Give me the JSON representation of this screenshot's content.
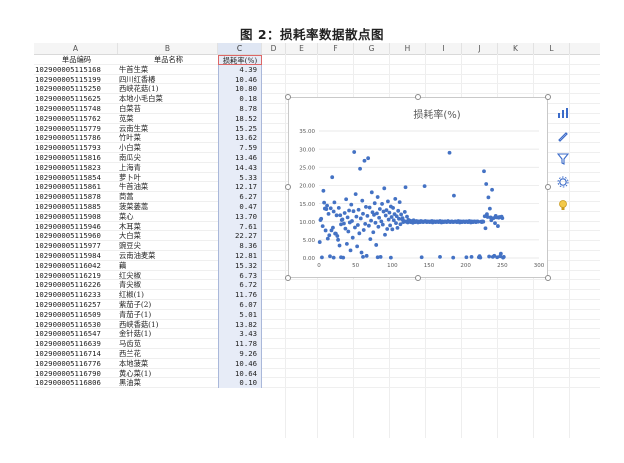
{
  "caption": "图 2：损耗率数据散点图",
  "columns": [
    "A",
    "B",
    "C",
    "D",
    "E",
    "F",
    "G",
    "H",
    "I",
    "J",
    "K",
    "L"
  ],
  "table": {
    "headers": [
      "单品编码",
      "单品名称",
      "损耗率(%)"
    ],
    "rows": [
      [
        "102900005115168",
        "牛首生菜",
        "4.39"
      ],
      [
        "102900005115199",
        "四川红香椿",
        "10.46"
      ],
      [
        "102900005115250",
        "西峡花菇(1)",
        "10.80"
      ],
      [
        "102900005115625",
        "本地小毛白菜",
        "0.18"
      ],
      [
        "102900005115748",
        "白菜苔",
        "8.78"
      ],
      [
        "102900005115762",
        "苋菜",
        "18.52"
      ],
      [
        "102900005115779",
        "云南生菜",
        "15.25"
      ],
      [
        "102900005115786",
        "竹叶菜",
        "13.62"
      ],
      [
        "102900005115793",
        "小白菜",
        "7.59"
      ],
      [
        "102900005115816",
        "南瓜尖",
        "13.46"
      ],
      [
        "102900005115823",
        "上海青",
        "14.43"
      ],
      [
        "102900005115854",
        "萝卜叶",
        "5.33"
      ],
      [
        "102900005115861",
        "牛首油菜",
        "12.17"
      ],
      [
        "102900005115878",
        "茼蒿",
        "6.27"
      ],
      [
        "102900005115885",
        "菠菜蒌蒿",
        "0.47"
      ],
      [
        "102900005115908",
        "菜心",
        "13.70"
      ],
      [
        "102900005115946",
        "木耳菜",
        "7.61"
      ],
      [
        "102900005115960",
        "大白菜",
        "22.27"
      ],
      [
        "102900005115977",
        "豌豆尖",
        "8.36"
      ],
      [
        "102900005115984",
        "云南油麦菜",
        "12.81"
      ],
      [
        "102900005116042",
        "藕",
        "15.32"
      ],
      [
        "102900005116219",
        "红尖椒",
        "6.73"
      ],
      [
        "102900005116226",
        "青尖椒",
        "6.72"
      ],
      [
        "102900005116233",
        "红椒(1)",
        "11.76"
      ],
      [
        "102900005116257",
        "紫茄子(2)",
        "6.07"
      ],
      [
        "102900005116509",
        "青茄子(1)",
        "5.01"
      ],
      [
        "102900005116530",
        "西峡香菇(1)",
        "13.82"
      ],
      [
        "102900005116547",
        "金针菇(1)",
        "3.43"
      ],
      [
        "102900005116639",
        "马齿苋",
        "11.78"
      ],
      [
        "102900005116714",
        "西兰花",
        "9.26"
      ],
      [
        "102900005116776",
        "本地菠菜",
        "10.46"
      ],
      [
        "102900005116790",
        "黄心菜(1)",
        "10.64"
      ],
      [
        "102900005116806",
        "黑油菜",
        "0.10"
      ]
    ]
  },
  "chart_data": {
    "type": "scatter",
    "title": "损耗率(%)",
    "xlim": [
      0,
      300
    ],
    "ylim": [
      0,
      35
    ],
    "xticks": [
      "0",
      "50",
      "100",
      "150",
      "200",
      "250",
      "300"
    ],
    "yticks": [
      "0.00",
      "5.00",
      "10.00",
      "15.00",
      "20.00",
      "25.00",
      "30.00",
      "35.00"
    ],
    "color": "#4472c4",
    "grid": true,
    "points": [
      [
        1,
        4.39
      ],
      [
        2,
        10.46
      ],
      [
        3,
        10.8
      ],
      [
        4,
        0.18
      ],
      [
        5,
        8.78
      ],
      [
        6,
        18.52
      ],
      [
        7,
        15.25
      ],
      [
        8,
        13.62
      ],
      [
        9,
        7.59
      ],
      [
        10,
        13.46
      ],
      [
        11,
        14.43
      ],
      [
        12,
        5.33
      ],
      [
        13,
        12.17
      ],
      [
        14,
        6.27
      ],
      [
        15,
        0.47
      ],
      [
        16,
        13.7
      ],
      [
        17,
        7.61
      ],
      [
        18,
        22.27
      ],
      [
        19,
        8.36
      ],
      [
        20,
        12.81
      ],
      [
        21,
        15.32
      ],
      [
        22,
        6.73
      ],
      [
        23,
        6.72
      ],
      [
        24,
        11.76
      ],
      [
        25,
        6.07
      ],
      [
        26,
        5.01
      ],
      [
        27,
        13.82
      ],
      [
        28,
        3.43
      ],
      [
        29,
        11.78
      ],
      [
        30,
        9.26
      ],
      [
        31,
        10.46
      ],
      [
        32,
        10.64
      ],
      [
        33,
        0.1
      ],
      [
        34,
        9.5
      ],
      [
        35,
        12.4
      ],
      [
        36,
        8.1
      ],
      [
        37,
        16.2
      ],
      [
        38,
        3.9
      ],
      [
        39,
        11.2
      ],
      [
        40,
        7.3
      ],
      [
        41,
        13.1
      ],
      [
        42,
        9.8
      ],
      [
        43,
        2.1
      ],
      [
        44,
        14.7
      ],
      [
        45,
        10.2
      ],
      [
        46,
        5.6
      ],
      [
        47,
        12.9
      ],
      [
        48,
        29.2
      ],
      [
        49,
        8.4
      ],
      [
        50,
        17.6
      ],
      [
        51,
        11.4
      ],
      [
        52,
        3.2
      ],
      [
        53,
        9.1
      ],
      [
        54,
        13.3
      ],
      [
        55,
        6.8
      ],
      [
        56,
        24.6
      ],
      [
        57,
        10.9
      ],
      [
        58,
        1.5
      ],
      [
        59,
        15.8
      ],
      [
        60,
        12.2
      ],
      [
        61,
        7.7
      ],
      [
        62,
        26.8
      ],
      [
        63,
        9.4
      ],
      [
        64,
        14.1
      ],
      [
        65,
        0.6
      ],
      [
        66,
        11.6
      ],
      [
        67,
        27.5
      ],
      [
        68,
        8.9
      ],
      [
        69,
        13.9
      ],
      [
        70,
        5.2
      ],
      [
        71,
        10.3
      ],
      [
        72,
        18.1
      ],
      [
        73,
        12.6
      ],
      [
        74,
        7.1
      ],
      [
        75,
        11.9
      ],
      [
        76,
        15.1
      ],
      [
        77,
        9.7
      ],
      [
        78,
        3.6
      ],
      [
        79,
        12.3
      ],
      [
        80,
        16.8
      ],
      [
        81,
        8.6
      ],
      [
        82,
        11.1
      ],
      [
        83,
        13.5
      ],
      [
        84,
        0.3
      ],
      [
        85,
        10.1
      ],
      [
        86,
        14.9
      ],
      [
        87,
        9.2
      ],
      [
        88,
        12.8
      ],
      [
        89,
        19.2
      ],
      [
        90,
        6.4
      ],
      [
        91,
        11.7
      ],
      [
        92,
        13.2
      ],
      [
        93,
        8.0
      ],
      [
        94,
        15.6
      ],
      [
        95,
        10.6
      ],
      [
        96,
        12.5
      ],
      [
        97,
        9.0
      ],
      [
        98,
        14.2
      ],
      [
        99,
        11.3
      ],
      [
        100,
        7.9
      ],
      [
        101,
        13.8
      ],
      [
        102,
        10.4
      ],
      [
        103,
        12.1
      ],
      [
        104,
        16.3
      ],
      [
        105,
        9.6
      ],
      [
        106,
        11.5
      ],
      [
        107,
        8.3
      ],
      [
        108,
        13.0
      ],
      [
        109,
        10.8
      ],
      [
        110,
        15.4
      ],
      [
        111,
        9.3
      ],
      [
        112,
        12.0
      ],
      [
        113,
        10.7
      ],
      [
        114,
        11.0
      ],
      [
        115,
        9.9
      ],
      [
        116,
        10.2
      ],
      [
        117,
        12.7
      ],
      [
        118,
        19.5
      ],
      [
        119,
        10.0
      ],
      [
        120,
        11.4
      ],
      [
        121,
        9.8
      ],
      [
        122,
        10.5
      ],
      [
        123,
        10.1
      ],
      [
        124,
        10.3
      ],
      [
        125,
        9.9
      ],
      [
        126,
        10.0
      ],
      [
        127,
        10.2
      ],
      [
        128,
        9.7
      ],
      [
        129,
        10.4
      ],
      [
        130,
        10.1
      ],
      [
        131,
        9.9
      ],
      [
        132,
        10.0
      ],
      [
        133,
        10.2
      ],
      [
        134,
        10.0
      ],
      [
        135,
        9.8
      ],
      [
        136,
        10.1
      ],
      [
        137,
        10.0
      ],
      [
        138,
        9.9
      ],
      [
        139,
        10.2
      ],
      [
        140,
        10.0
      ],
      [
        141,
        10.1
      ],
      [
        142,
        9.9
      ],
      [
        143,
        10.0
      ],
      [
        144,
        19.8
      ],
      [
        145,
        10.2
      ],
      [
        146,
        10.0
      ],
      [
        147,
        9.9
      ],
      [
        148,
        10.1
      ],
      [
        149,
        10.0
      ],
      [
        150,
        10.0
      ],
      [
        151,
        9.9
      ],
      [
        152,
        10.1
      ],
      [
        153,
        10.0
      ],
      [
        154,
        10.2
      ],
      [
        155,
        9.8
      ],
      [
        156,
        10.0
      ],
      [
        157,
        10.1
      ],
      [
        158,
        10.0
      ],
      [
        159,
        9.9
      ],
      [
        160,
        10.0
      ],
      [
        161,
        10.1
      ],
      [
        162,
        10.0
      ],
      [
        163,
        9.9
      ],
      [
        164,
        10.0
      ],
      [
        165,
        10.2
      ],
      [
        166,
        10.0
      ],
      [
        167,
        9.8
      ],
      [
        168,
        10.1
      ],
      [
        169,
        10.0
      ],
      [
        170,
        9.9
      ],
      [
        171,
        10.0
      ],
      [
        172,
        10.1
      ],
      [
        173,
        10.0
      ],
      [
        174,
        9.9
      ],
      [
        175,
        10.0
      ],
      [
        176,
        10.2
      ],
      [
        177,
        10.0
      ],
      [
        178,
        29.0
      ],
      [
        179,
        9.9
      ],
      [
        180,
        10.0
      ],
      [
        181,
        10.1
      ],
      [
        182,
        10.0
      ],
      [
        183,
        9.9
      ],
      [
        184,
        17.2
      ],
      [
        185,
        10.0
      ],
      [
        186,
        10.1
      ],
      [
        187,
        10.0
      ],
      [
        188,
        9.9
      ],
      [
        189,
        10.0
      ],
      [
        190,
        10.2
      ],
      [
        191,
        10.0
      ],
      [
        192,
        9.8
      ],
      [
        193,
        10.1
      ],
      [
        194,
        10.0
      ],
      [
        195,
        9.9
      ],
      [
        196,
        10.0
      ],
      [
        197,
        10.1
      ],
      [
        198,
        10.0
      ],
      [
        199,
        9.9
      ],
      [
        200,
        10.0
      ],
      [
        201,
        10.1
      ],
      [
        202,
        10.0
      ],
      [
        203,
        9.9
      ],
      [
        204,
        10.0
      ],
      [
        205,
        10.2
      ],
      [
        206,
        10.0
      ],
      [
        207,
        9.8
      ],
      [
        208,
        10.1
      ],
      [
        209,
        10.0
      ],
      [
        210,
        9.9
      ],
      [
        211,
        10.0
      ],
      [
        212,
        10.1
      ],
      [
        213,
        10.0
      ],
      [
        214,
        9.9
      ],
      [
        215,
        10.0
      ],
      [
        216,
        10.1
      ],
      [
        217,
        10.0
      ],
      [
        218,
        0.2
      ],
      [
        219,
        0.5
      ],
      [
        220,
        0.1
      ],
      [
        221,
        10.0
      ],
      [
        222,
        9.9
      ],
      [
        223,
        10.1
      ],
      [
        224,
        10.0
      ],
      [
        225,
        23.9
      ],
      [
        226,
        11.5
      ],
      [
        227,
        8.2
      ],
      [
        228,
        20.4
      ],
      [
        229,
        12.1
      ],
      [
        230,
        11.3
      ],
      [
        231,
        16.7
      ],
      [
        232,
        0.4
      ],
      [
        233,
        13.6
      ],
      [
        234,
        11.2
      ],
      [
        235,
        10.4
      ],
      [
        236,
        18.8
      ],
      [
        237,
        0.3
      ],
      [
        238,
        11.0
      ],
      [
        239,
        0.6
      ],
      [
        240,
        9.6
      ],
      [
        241,
        11.6
      ],
      [
        242,
        11.2
      ],
      [
        243,
        0.2
      ],
      [
        244,
        8.8
      ],
      [
        245,
        11.1
      ],
      [
        246,
        11.3
      ],
      [
        247,
        0.5
      ],
      [
        248,
        1.2
      ],
      [
        249,
        11.4
      ],
      [
        250,
        11.0
      ],
      [
        251,
        0.1
      ],
      [
        252,
        0.3
      ],
      [
        20,
        0.1
      ],
      [
        30,
        0.2
      ],
      [
        60,
        0.3
      ],
      [
        80,
        0.2
      ],
      [
        98,
        0.1
      ],
      [
        140,
        0.2
      ],
      [
        165,
        0.3
      ],
      [
        183,
        0.1
      ],
      [
        201,
        0.2
      ],
      [
        208,
        0.3
      ]
    ]
  }
}
